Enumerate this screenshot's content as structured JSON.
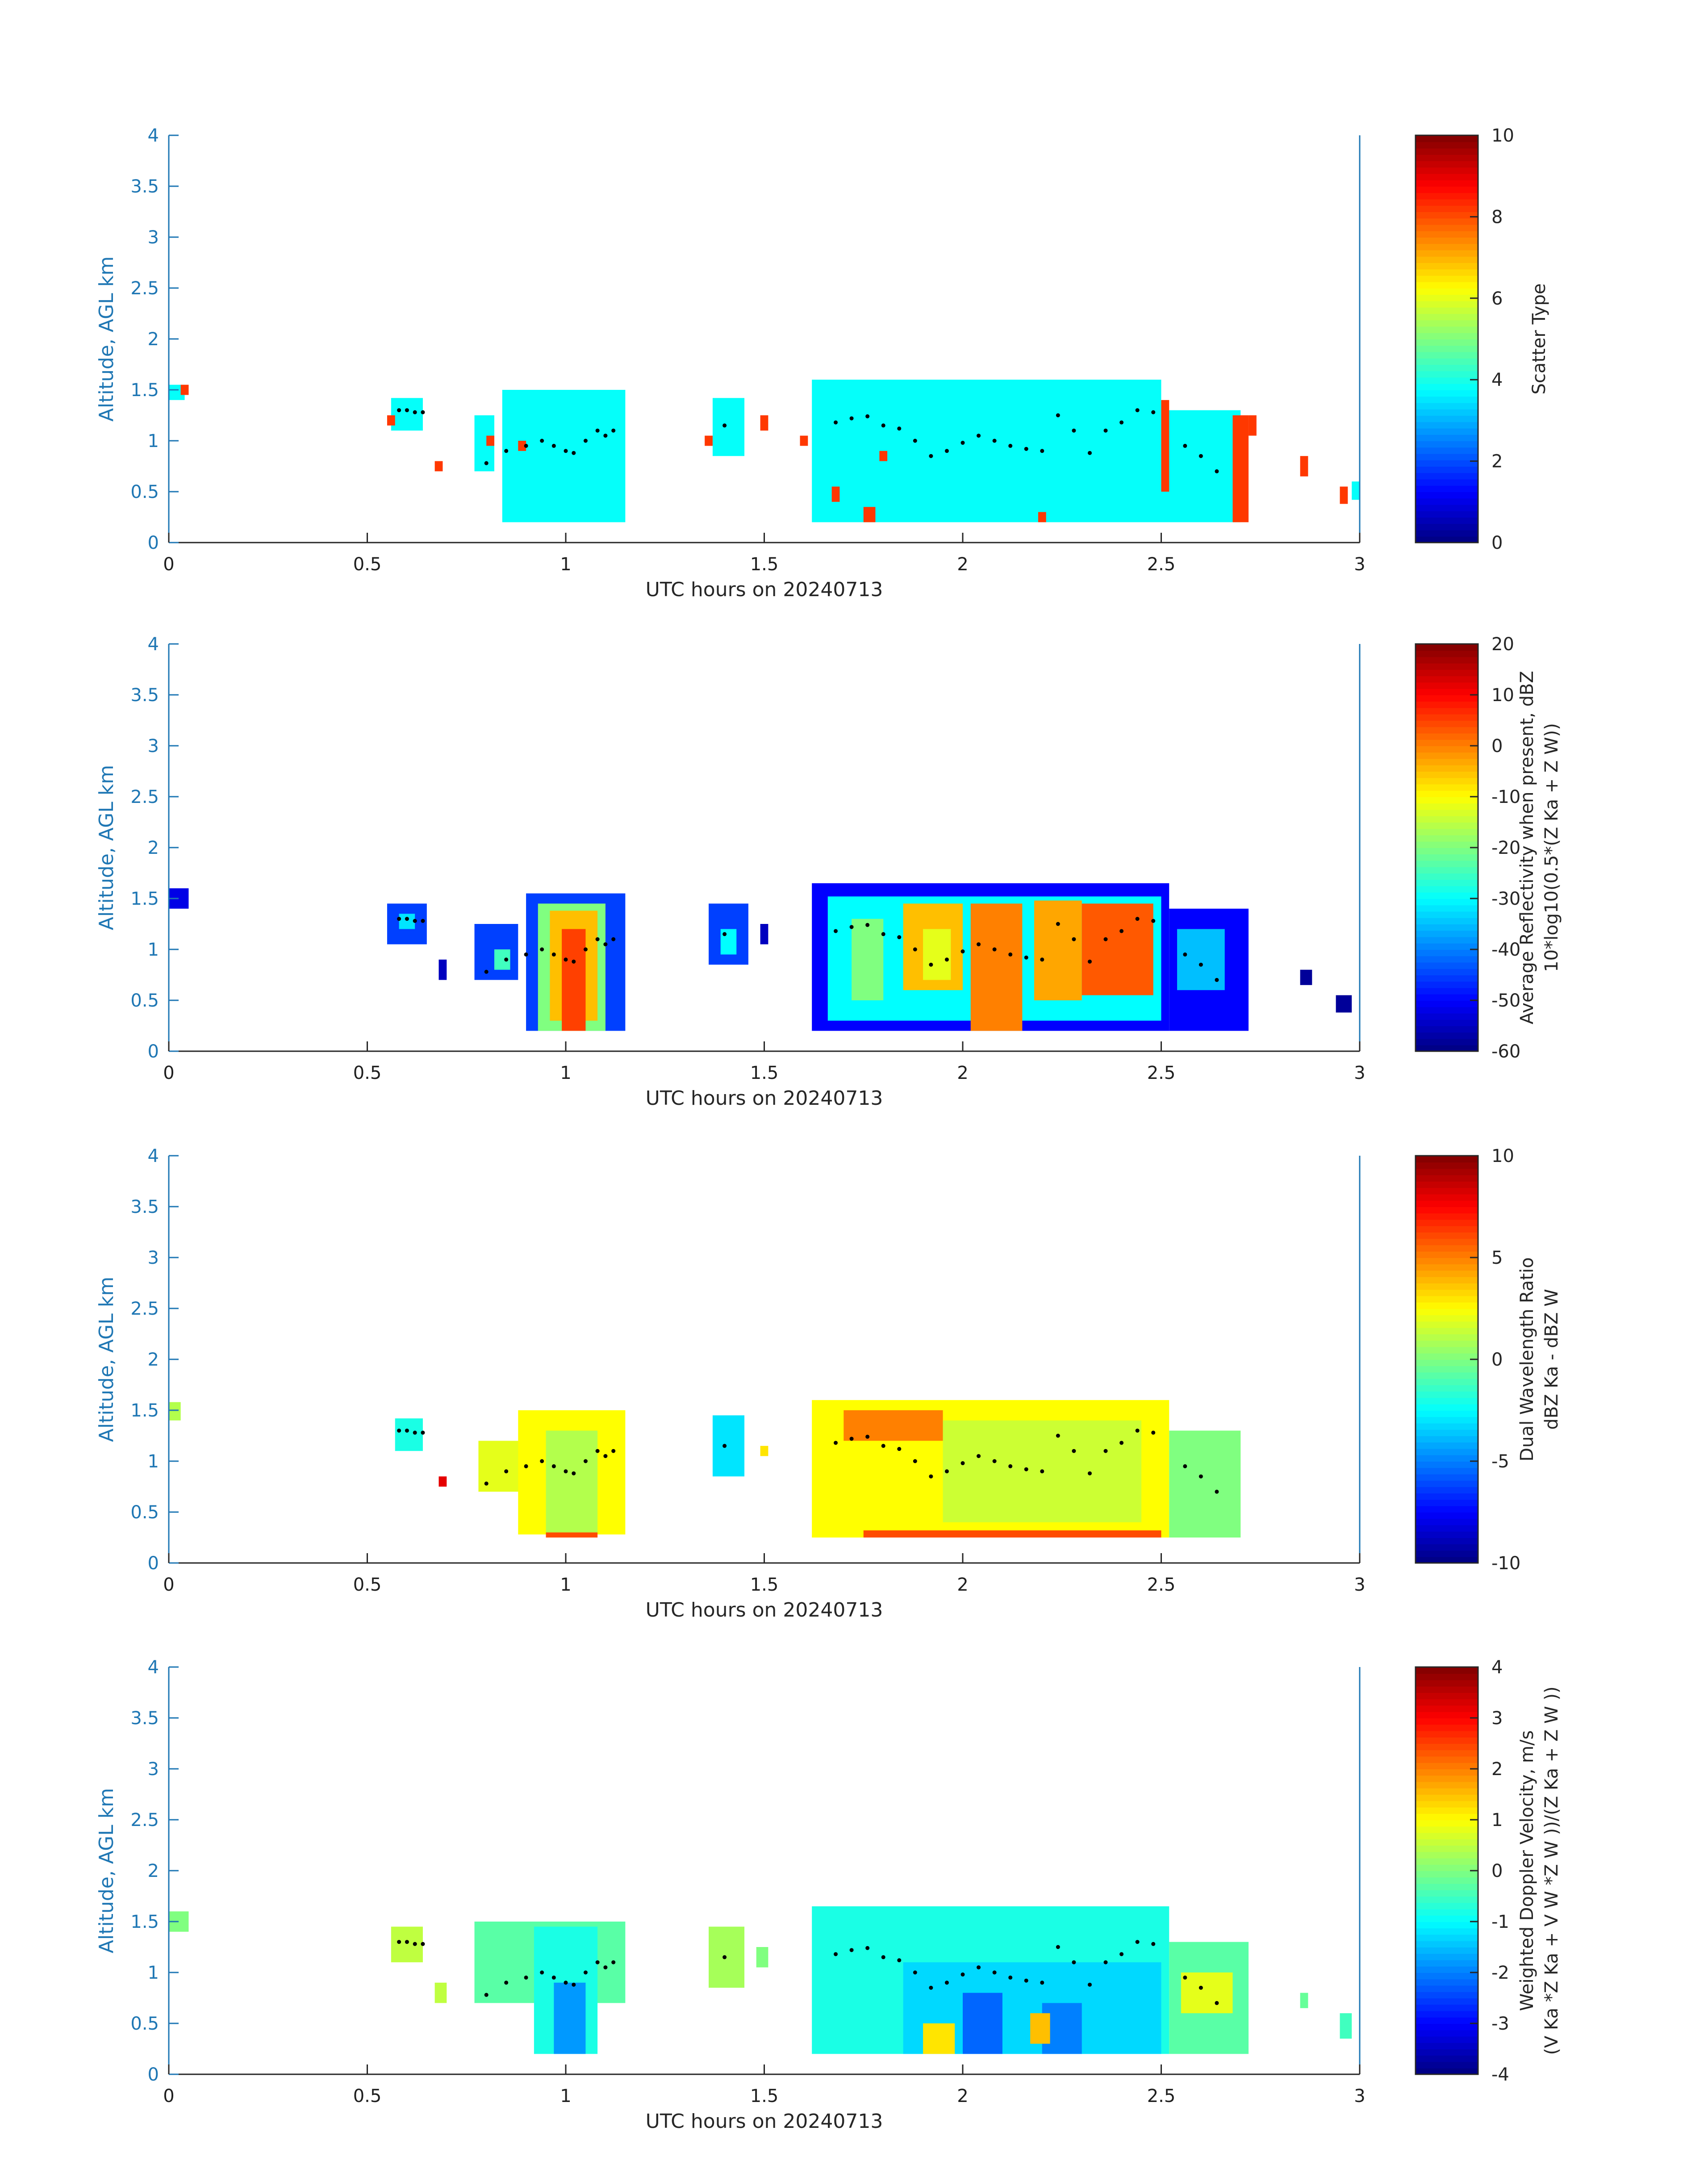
{
  "figure": {
    "date_label": "UTC hours on 20240713"
  },
  "chart_data": [
    {
      "type": "heatmap",
      "xlabel": "UTC hours on 20240713",
      "ylabel": "Altitude, AGL km",
      "xlim": [
        0,
        3
      ],
      "ylim": [
        0,
        4
      ],
      "xticks": [
        "0",
        "0.5",
        "1",
        "1.5",
        "2",
        "2.5",
        "3"
      ],
      "yticks": [
        "0",
        "0.5",
        "1",
        "1.5",
        "2",
        "2.5",
        "3",
        "3.5",
        "4"
      ],
      "colorbar": {
        "label_lines": [
          "Scatter Type"
        ],
        "range": [
          0,
          10
        ],
        "ticks": [
          "0",
          "2",
          "4",
          "6",
          "8",
          "10"
        ]
      },
      "colormap": "jet",
      "regions": [
        {
          "x": [
            0,
            0.04
          ],
          "y": [
            1.4,
            1.55
          ],
          "value": 3.8
        },
        {
          "x": [
            0.56,
            0.64
          ],
          "y": [
            1.1,
            1.42
          ],
          "value": 3.8
        },
        {
          "x": [
            0.77,
            0.82
          ],
          "y": [
            0.7,
            1.25
          ],
          "value": 3.8
        },
        {
          "x": [
            0.84,
            1.15
          ],
          "y": [
            0.2,
            1.5
          ],
          "value": 3.8
        },
        {
          "x": [
            1.37,
            1.45
          ],
          "y": [
            0.85,
            1.42
          ],
          "value": 3.8
        },
        {
          "x": [
            1.62,
            2.5
          ],
          "y": [
            0.2,
            1.6
          ],
          "value": 3.8
        },
        {
          "x": [
            2.5,
            2.7
          ],
          "y": [
            0.2,
            1.3
          ],
          "value": 3.8
        },
        {
          "x": [
            2.53,
            2.67
          ],
          "y": [
            0.55,
            1.25
          ],
          "value": 3.8
        },
        {
          "x": [
            2.98,
            3.0
          ],
          "y": [
            0.42,
            0.6
          ],
          "value": 3.8
        },
        {
          "x": [
            0.03,
            0.05
          ],
          "y": [
            1.45,
            1.55
          ],
          "value": 8.2
        },
        {
          "x": [
            0.55,
            0.57
          ],
          "y": [
            1.15,
            1.25
          ],
          "value": 8.2
        },
        {
          "x": [
            0.67,
            0.69
          ],
          "y": [
            0.7,
            0.8
          ],
          "value": 8.2
        },
        {
          "x": [
            0.8,
            0.82
          ],
          "y": [
            0.95,
            1.05
          ],
          "value": 8.2
        },
        {
          "x": [
            0.88,
            0.9
          ],
          "y": [
            0.9,
            1.0
          ],
          "value": 8.2
        },
        {
          "x": [
            1.35,
            1.37
          ],
          "y": [
            0.95,
            1.05
          ],
          "value": 8.2
        },
        {
          "x": [
            1.49,
            1.51
          ],
          "y": [
            1.1,
            1.25
          ],
          "value": 8.2
        },
        {
          "x": [
            1.59,
            1.61
          ],
          "y": [
            0.95,
            1.05
          ],
          "value": 8.2
        },
        {
          "x": [
            1.67,
            1.69
          ],
          "y": [
            0.4,
            0.55
          ],
          "value": 8.2
        },
        {
          "x": [
            1.75,
            1.78
          ],
          "y": [
            0.2,
            0.35
          ],
          "value": 8.2
        },
        {
          "x": [
            1.79,
            1.81
          ],
          "y": [
            0.8,
            0.9
          ],
          "value": 8.2
        },
        {
          "x": [
            2.19,
            2.21
          ],
          "y": [
            0.2,
            0.3
          ],
          "value": 8.2
        },
        {
          "x": [
            2.5,
            2.52
          ],
          "y": [
            0.5,
            1.4
          ],
          "value": 8.2
        },
        {
          "x": [
            2.68,
            2.72
          ],
          "y": [
            0.2,
            1.25
          ],
          "value": 8.2
        },
        {
          "x": [
            2.72,
            2.74
          ],
          "y": [
            1.05,
            1.25
          ],
          "value": 8.2
        },
        {
          "x": [
            2.85,
            2.87
          ],
          "y": [
            0.65,
            0.85
          ],
          "value": 8.2
        },
        {
          "x": [
            2.95,
            2.97
          ],
          "y": [
            0.38,
            0.55
          ],
          "value": 8.2
        }
      ]
    },
    {
      "type": "heatmap",
      "xlabel": "UTC hours on 20240713",
      "ylabel": "Altitude, AGL km",
      "xlim": [
        0,
        3
      ],
      "ylim": [
        0,
        4
      ],
      "xticks": [
        "0",
        "0.5",
        "1",
        "1.5",
        "2",
        "2.5",
        "3"
      ],
      "yticks": [
        "0",
        "0.5",
        "1",
        "1.5",
        "2",
        "2.5",
        "3",
        "3.5",
        "4"
      ],
      "colorbar": {
        "label_lines": [
          "Average Reflectivity when present, dBZ",
          "10*log10(0.5*(Z Ka + Z W))"
        ],
        "range": [
          -60,
          20
        ],
        "ticks": [
          "-60",
          "-50",
          "-40",
          "-30",
          "-20",
          "-10",
          "0",
          "10",
          "20"
        ]
      },
      "colormap": "jet",
      "regions": [
        {
          "x": [
            0,
            0.05
          ],
          "y": [
            1.4,
            1.6
          ],
          "value": -52
        },
        {
          "x": [
            0.55,
            0.65
          ],
          "y": [
            1.05,
            1.45
          ],
          "value": -45
        },
        {
          "x": [
            0.58,
            0.62
          ],
          "y": [
            1.2,
            1.35
          ],
          "value": -32
        },
        {
          "x": [
            0.68,
            0.7
          ],
          "y": [
            0.7,
            0.9
          ],
          "value": -55
        },
        {
          "x": [
            0.77,
            0.88
          ],
          "y": [
            0.7,
            1.25
          ],
          "value": -45
        },
        {
          "x": [
            0.82,
            0.86
          ],
          "y": [
            0.8,
            1.0
          ],
          "value": -25
        },
        {
          "x": [
            0.9,
            1.15
          ],
          "y": [
            0.2,
            1.55
          ],
          "value": -45
        },
        {
          "x": [
            0.93,
            1.1
          ],
          "y": [
            0.2,
            1.45
          ],
          "value": -20
        },
        {
          "x": [
            0.96,
            1.08
          ],
          "y": [
            0.3,
            1.38
          ],
          "value": -5
        },
        {
          "x": [
            0.99,
            1.05
          ],
          "y": [
            0.2,
            1.2
          ],
          "value": 5
        },
        {
          "x": [
            1.36,
            1.46
          ],
          "y": [
            0.85,
            1.45
          ],
          "value": -45
        },
        {
          "x": [
            1.39,
            1.43
          ],
          "y": [
            0.95,
            1.2
          ],
          "value": -30
        },
        {
          "x": [
            1.49,
            1.51
          ],
          "y": [
            1.05,
            1.25
          ],
          "value": -55
        },
        {
          "x": [
            1.62,
            2.52
          ],
          "y": [
            0.2,
            1.65
          ],
          "value": -50
        },
        {
          "x": [
            1.66,
            2.5
          ],
          "y": [
            0.3,
            1.52
          ],
          "value": -30
        },
        {
          "x": [
            1.72,
            1.8
          ],
          "y": [
            0.5,
            1.3
          ],
          "value": -20
        },
        {
          "x": [
            1.85,
            2.0
          ],
          "y": [
            0.6,
            1.45
          ],
          "value": -5
        },
        {
          "x": [
            2.02,
            2.15
          ],
          "y": [
            0.2,
            1.45
          ],
          "value": 0
        },
        {
          "x": [
            2.18,
            2.3
          ],
          "y": [
            0.5,
            1.48
          ],
          "value": -3
        },
        {
          "x": [
            2.3,
            2.48
          ],
          "y": [
            0.55,
            1.45
          ],
          "value": 3
        },
        {
          "x": [
            1.9,
            1.97
          ],
          "y": [
            0.7,
            1.2
          ],
          "value": -12
        },
        {
          "x": [
            2.52,
            2.72
          ],
          "y": [
            0.2,
            1.4
          ],
          "value": -50
        },
        {
          "x": [
            2.54,
            2.66
          ],
          "y": [
            0.6,
            1.2
          ],
          "value": -35
        },
        {
          "x": [
            2.85,
            2.88
          ],
          "y": [
            0.65,
            0.8
          ],
          "value": -58
        },
        {
          "x": [
            2.94,
            2.98
          ],
          "y": [
            0.38,
            0.55
          ],
          "value": -58
        }
      ]
    },
    {
      "type": "heatmap",
      "xlabel": "UTC hours on 20240713",
      "ylabel": "Altitude, AGL km",
      "xlim": [
        0,
        3
      ],
      "ylim": [
        0,
        4
      ],
      "xticks": [
        "0",
        "0.5",
        "1",
        "1.5",
        "2",
        "2.5",
        "3"
      ],
      "yticks": [
        "0",
        "0.5",
        "1",
        "1.5",
        "2",
        "2.5",
        "3",
        "3.5",
        "4"
      ],
      "colorbar": {
        "label_lines": [
          "Dual Wavelength Ratio",
          "dBZ Ka - dBZ W"
        ],
        "range": [
          -10,
          10
        ],
        "ticks": [
          "-10",
          "-5",
          "0",
          "5",
          "10"
        ]
      },
      "colormap": "jet",
      "regions": [
        {
          "x": [
            0,
            0.03
          ],
          "y": [
            1.4,
            1.58
          ],
          "value": 1
        },
        {
          "x": [
            0.57,
            0.64
          ],
          "y": [
            1.1,
            1.42
          ],
          "value": -2
        },
        {
          "x": [
            0.68,
            0.7
          ],
          "y": [
            0.75,
            0.85
          ],
          "value": 8
        },
        {
          "x": [
            0.78,
            0.9
          ],
          "y": [
            0.7,
            1.2
          ],
          "value": 2
        },
        {
          "x": [
            0.88,
            1.15
          ],
          "y": [
            0.28,
            1.5
          ],
          "value": 2.5
        },
        {
          "x": [
            0.95,
            1.08
          ],
          "y": [
            0.28,
            1.3
          ],
          "value": 1
        },
        {
          "x": [
            0.95,
            1.08
          ],
          "y": [
            0.25,
            0.3
          ],
          "value": 6
        },
        {
          "x": [
            1.37,
            1.45
          ],
          "y": [
            0.85,
            1.45
          ],
          "value": -3
        },
        {
          "x": [
            1.49,
            1.51
          ],
          "y": [
            1.05,
            1.15
          ],
          "value": 3
        },
        {
          "x": [
            1.62,
            2.52
          ],
          "y": [
            0.25,
            1.6
          ],
          "value": 2.5
        },
        {
          "x": [
            1.7,
            1.95
          ],
          "y": [
            1.2,
            1.5
          ],
          "value": 5
        },
        {
          "x": [
            1.95,
            2.45
          ],
          "y": [
            0.4,
            1.4
          ],
          "value": 1.5
        },
        {
          "x": [
            1.75,
            2.5
          ],
          "y": [
            0.25,
            0.32
          ],
          "value": 6
        },
        {
          "x": [
            2.52,
            2.7
          ],
          "y": [
            0.25,
            1.3
          ],
          "value": 0
        }
      ]
    },
    {
      "type": "heatmap",
      "xlabel": "UTC hours on 20240713",
      "ylabel": "Altitude, AGL km",
      "xlim": [
        0,
        3
      ],
      "ylim": [
        0,
        4
      ],
      "xticks": [
        "0",
        "0.5",
        "1",
        "1.5",
        "2",
        "2.5",
        "3"
      ],
      "yticks": [
        "0",
        "0.5",
        "1",
        "1.5",
        "2",
        "2.5",
        "3",
        "3.5",
        "4"
      ],
      "colorbar": {
        "label_lines": [
          "Weighted Doppler Velocity, m/s",
          "(V Ka *Z Ka + V W *Z W ))/(Z Ka + Z W ))"
        ],
        "range": [
          -4,
          4
        ],
        "ticks": [
          "-4",
          "-3",
          "-2",
          "-1",
          "0",
          "1",
          "2",
          "3",
          "4"
        ]
      },
      "colormap": "jet",
      "regions": [
        {
          "x": [
            0,
            0.05
          ],
          "y": [
            1.4,
            1.6
          ],
          "value": 0
        },
        {
          "x": [
            0.56,
            0.64
          ],
          "y": [
            1.1,
            1.45
          ],
          "value": 0.5
        },
        {
          "x": [
            0.67,
            0.7
          ],
          "y": [
            0.7,
            0.9
          ],
          "value": 0.5
        },
        {
          "x": [
            0.77,
            1.15
          ],
          "y": [
            0.7,
            1.5
          ],
          "value": -0.3
        },
        {
          "x": [
            0.92,
            1.08
          ],
          "y": [
            0.2,
            1.45
          ],
          "value": -0.8
        },
        {
          "x": [
            0.97,
            1.05
          ],
          "y": [
            0.2,
            0.9
          ],
          "value": -1.8
        },
        {
          "x": [
            1.36,
            1.45
          ],
          "y": [
            0.85,
            1.45
          ],
          "value": 0.3
        },
        {
          "x": [
            1.48,
            1.51
          ],
          "y": [
            1.05,
            1.25
          ],
          "value": 0
        },
        {
          "x": [
            1.62,
            2.52
          ],
          "y": [
            0.2,
            1.65
          ],
          "value": -0.8
        },
        {
          "x": [
            1.85,
            2.5
          ],
          "y": [
            0.2,
            1.1
          ],
          "value": -1.3
        },
        {
          "x": [
            2.0,
            2.1
          ],
          "y": [
            0.2,
            0.8
          ],
          "value": -2.2
        },
        {
          "x": [
            2.2,
            2.3
          ],
          "y": [
            0.2,
            0.7
          ],
          "value": -2
        },
        {
          "x": [
            1.9,
            1.98
          ],
          "y": [
            0.2,
            0.5
          ],
          "value": 1.2
        },
        {
          "x": [
            2.17,
            2.22
          ],
          "y": [
            0.3,
            0.6
          ],
          "value": 1.5
        },
        {
          "x": [
            2.52,
            2.72
          ],
          "y": [
            0.2,
            1.3
          ],
          "value": -0.3
        },
        {
          "x": [
            2.55,
            2.68
          ],
          "y": [
            0.6,
            1.0
          ],
          "value": 0.8
        },
        {
          "x": [
            2.85,
            2.87
          ],
          "y": [
            0.65,
            0.8
          ],
          "value": -0.2
        },
        {
          "x": [
            2.95,
            2.98
          ],
          "y": [
            0.35,
            0.6
          ],
          "value": -0.5
        }
      ]
    }
  ],
  "cloud_top_dots": {
    "x": [
      0.58,
      0.6,
      0.62,
      0.64,
      0.8,
      0.85,
      0.9,
      0.94,
      0.97,
      1.0,
      1.02,
      1.05,
      1.08,
      1.1,
      1.12,
      1.4,
      1.68,
      1.72,
      1.76,
      1.8,
      1.84,
      1.88,
      1.92,
      1.96,
      2.0,
      2.04,
      2.08,
      2.12,
      2.16,
      2.2,
      2.24,
      2.28,
      2.32,
      2.36,
      2.4,
      2.44,
      2.48,
      2.56,
      2.6,
      2.64
    ],
    "y": [
      1.3,
      1.3,
      1.28,
      1.28,
      0.78,
      0.9,
      0.95,
      1.0,
      0.95,
      0.9,
      0.88,
      1.0,
      1.1,
      1.05,
      1.1,
      1.15,
      1.18,
      1.22,
      1.24,
      1.15,
      1.12,
      1.0,
      0.85,
      0.9,
      0.98,
      1.05,
      1.0,
      0.95,
      0.92,
      0.9,
      1.25,
      1.1,
      0.88,
      1.1,
      1.18,
      1.3,
      1.28,
      0.95,
      0.85,
      0.7
    ]
  }
}
